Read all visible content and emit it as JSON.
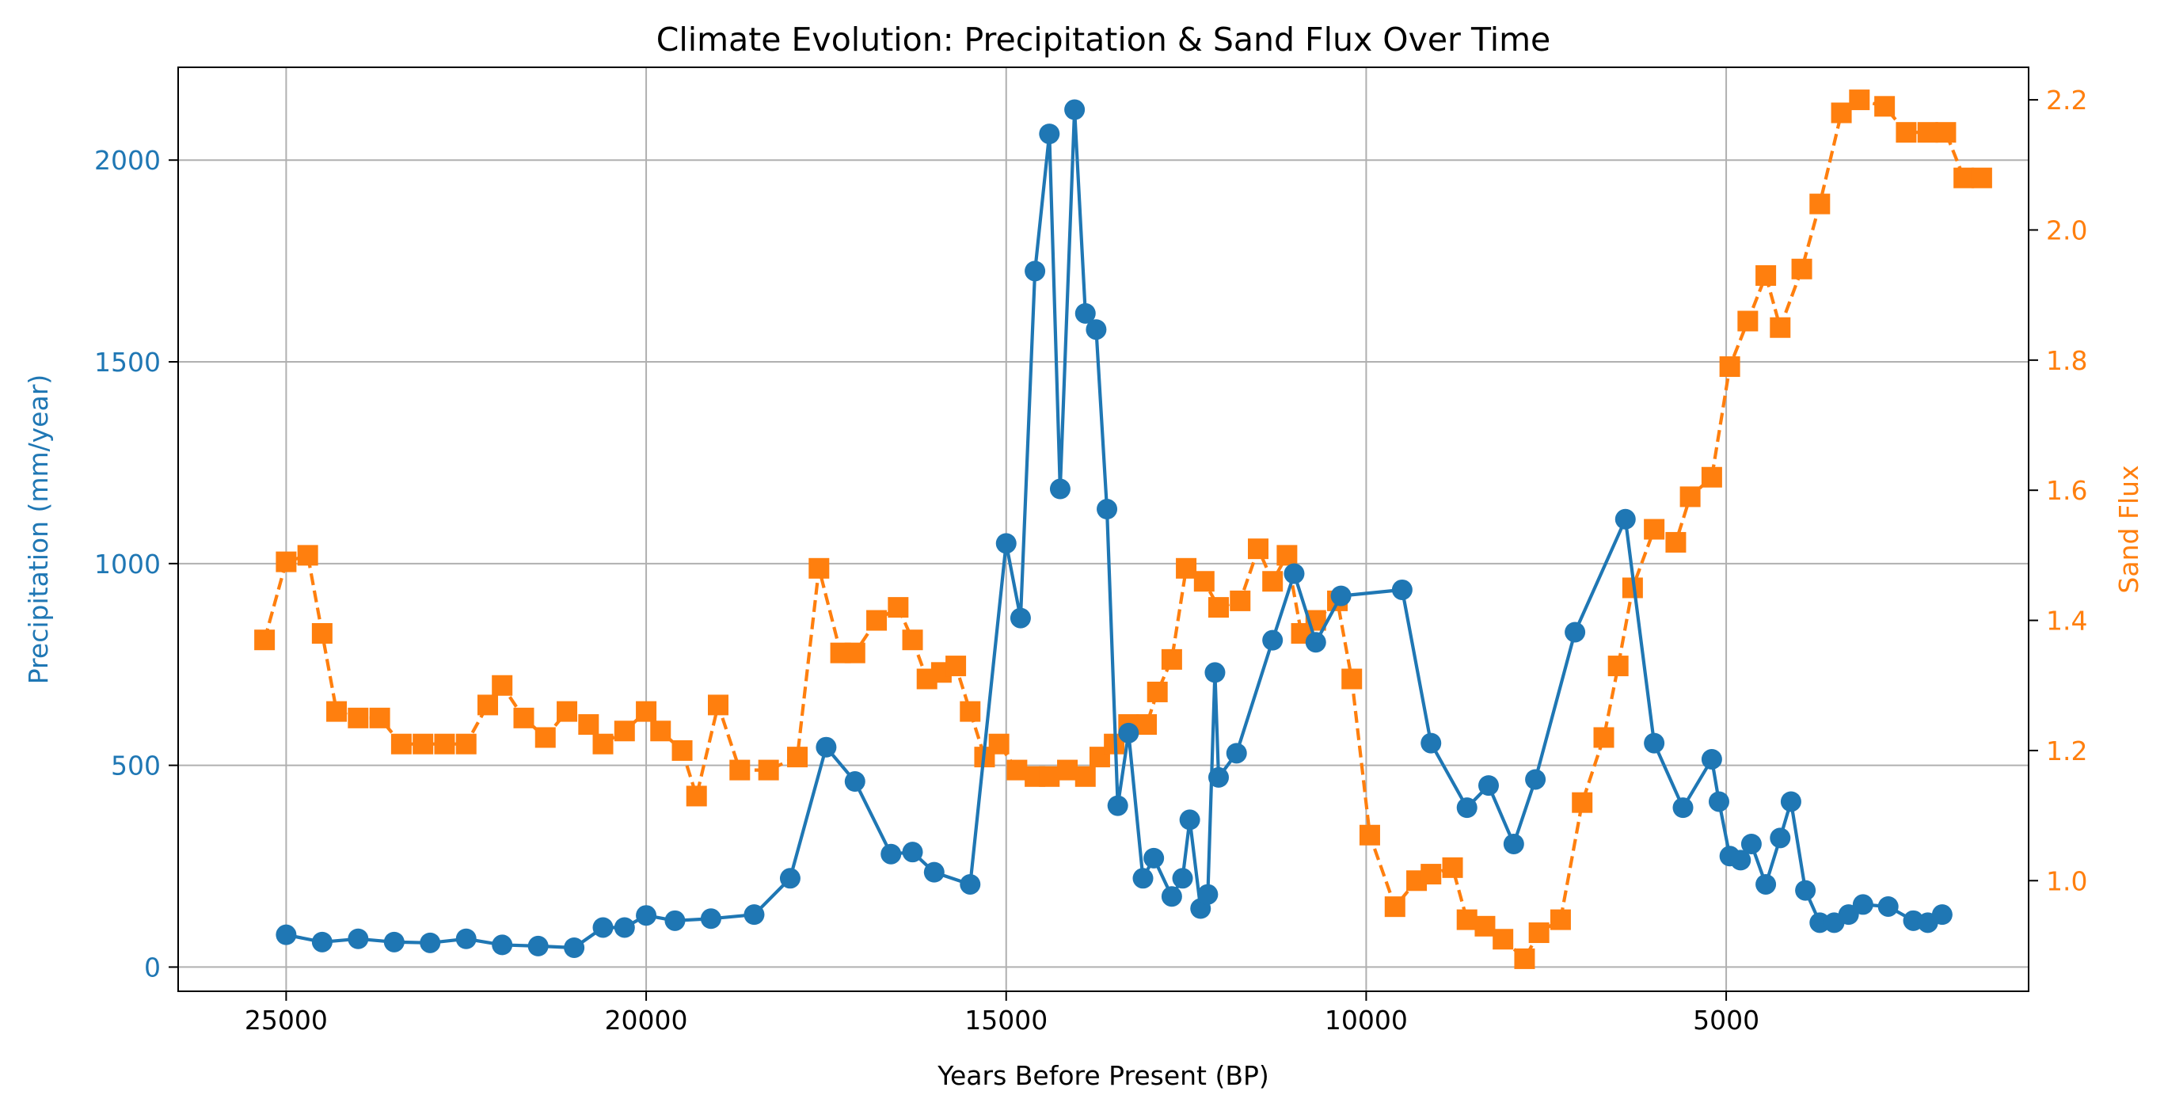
{
  "chart_data": {
    "type": "line",
    "title": "Climate Evolution: Precipitation & Sand Flux Over Time",
    "xlabel": "Years Before Present (BP)",
    "ylabel_left": "Precipitation (mm/year)",
    "ylabel_right": "Sand Flux",
    "x_reversed": true,
    "xlim": [
      26500,
      800
    ],
    "ylim_left": [
      -60,
      2230
    ],
    "ylim_right": [
      0.83,
      2.25
    ],
    "x_ticks": [
      25000,
      20000,
      15000,
      10000,
      5000
    ],
    "y_ticks_left": [
      0,
      500,
      1000,
      1500,
      2000
    ],
    "y_ticks_right": [
      1.0,
      1.2,
      1.4,
      1.6,
      1.8,
      2.0,
      2.2
    ],
    "y_tick_labels_right": [
      "1.0",
      "1.2",
      "1.4",
      "1.6",
      "1.8",
      "2.0",
      "2.2"
    ],
    "grid": true,
    "colors": {
      "precipitation": "#1f77b4",
      "sand_flux": "#ff7f0e"
    },
    "series": [
      {
        "axis": "left",
        "marker": "circle",
        "line_style": "solid",
        "x": [
          25000,
          24500,
          24000,
          23500,
          23000,
          22500,
          22000,
          21500,
          21000,
          20600,
          20300,
          20000,
          19600,
          19100,
          18500,
          18000,
          17500,
          17100,
          16600,
          16300,
          16000,
          15500,
          15000,
          14800,
          14600,
          14400,
          14250,
          14050,
          13900,
          13750,
          13600,
          13450,
          13300,
          13100,
          12950,
          12700,
          12550,
          12450,
          12300,
          12200,
          12100,
          12050,
          11800,
          11300,
          11000,
          10700,
          10350,
          9500,
          9100,
          8600,
          8300,
          7950,
          7650,
          7100,
          6400,
          6000,
          5600,
          5200,
          5100,
          4950,
          4800,
          4650,
          4450,
          4250,
          4100,
          3900,
          3700,
          3500,
          3300,
          3100,
          2750,
          2400,
          2200,
          2000
        ],
        "values": [
          80,
          62,
          70,
          62,
          60,
          70,
          55,
          52,
          48,
          98,
          98,
          128,
          115,
          120,
          130,
          220,
          545,
          460,
          280,
          285,
          235,
          205,
          1050,
          865,
          1725,
          2065,
          1185,
          2125,
          1620,
          1580,
          1135,
          400,
          580,
          220,
          270,
          175,
          220,
          365,
          145,
          180,
          730,
          470,
          530,
          810,
          975,
          805,
          920,
          935,
          555,
          395,
          450,
          305,
          465,
          830,
          1110,
          555,
          395,
          515,
          410,
          275,
          265,
          305,
          205,
          320,
          410,
          190,
          110,
          110,
          130,
          155,
          150,
          115,
          110,
          130
        ]
      },
      {
        "axis": "right",
        "marker": "square",
        "line_style": "dashed",
        "x": [
          25300,
          25000,
          24700,
          24500,
          24300,
          24000,
          23700,
          23400,
          23100,
          22800,
          22500,
          22200,
          22000,
          21700,
          21400,
          21100,
          20800,
          20600,
          20300,
          20000,
          19800,
          19500,
          19300,
          19000,
          18700,
          18300,
          17900,
          17600,
          17300,
          17100,
          16800,
          16500,
          16300,
          16100,
          15900,
          15700,
          15500,
          15300,
          15100,
          14850,
          14600,
          14400,
          14150,
          13900,
          13700,
          13500,
          13300,
          13050,
          12900,
          12700,
          12500,
          12250,
          12050,
          11750,
          11500,
          11300,
          11100,
          10900,
          10700,
          10400,
          10200,
          9950,
          9600,
          9300,
          9100,
          8800,
          8600,
          8350,
          8100,
          7800,
          7600,
          7300,
          7000,
          6700,
          6500,
          6300,
          6000,
          5700,
          5500,
          5200,
          4950,
          4700,
          4450,
          4250,
          3950,
          3700,
          3400,
          3150,
          2800,
          2500,
          2200,
          1950,
          1700,
          1450
        ],
        "values": [
          1.37,
          1.49,
          1.5,
          1.38,
          1.26,
          1.25,
          1.25,
          1.21,
          1.21,
          1.21,
          1.21,
          1.27,
          1.3,
          1.25,
          1.22,
          1.26,
          1.24,
          1.21,
          1.23,
          1.26,
          1.23,
          1.2,
          1.13,
          1.27,
          1.17,
          1.17,
          1.19,
          1.48,
          1.35,
          1.35,
          1.4,
          1.42,
          1.37,
          1.31,
          1.32,
          1.33,
          1.26,
          1.19,
          1.21,
          1.17,
          1.16,
          1.16,
          1.17,
          1.16,
          1.19,
          1.21,
          1.24,
          1.24,
          1.29,
          1.34,
          1.48,
          1.46,
          1.42,
          1.43,
          1.51,
          1.46,
          1.5,
          1.38,
          1.4,
          1.43,
          1.31,
          1.07,
          0.96,
          1.0,
          1.01,
          1.02,
          0.94,
          0.93,
          0.91,
          0.88,
          0.92,
          0.94,
          1.12,
          1.22,
          1.33,
          1.45,
          1.54,
          1.52,
          1.59,
          1.62,
          1.79,
          1.86,
          1.93,
          1.85,
          1.94,
          2.04,
          2.18,
          2.2,
          2.19,
          2.15,
          2.15,
          2.15,
          2.08,
          2.08
        ]
      }
    ]
  }
}
